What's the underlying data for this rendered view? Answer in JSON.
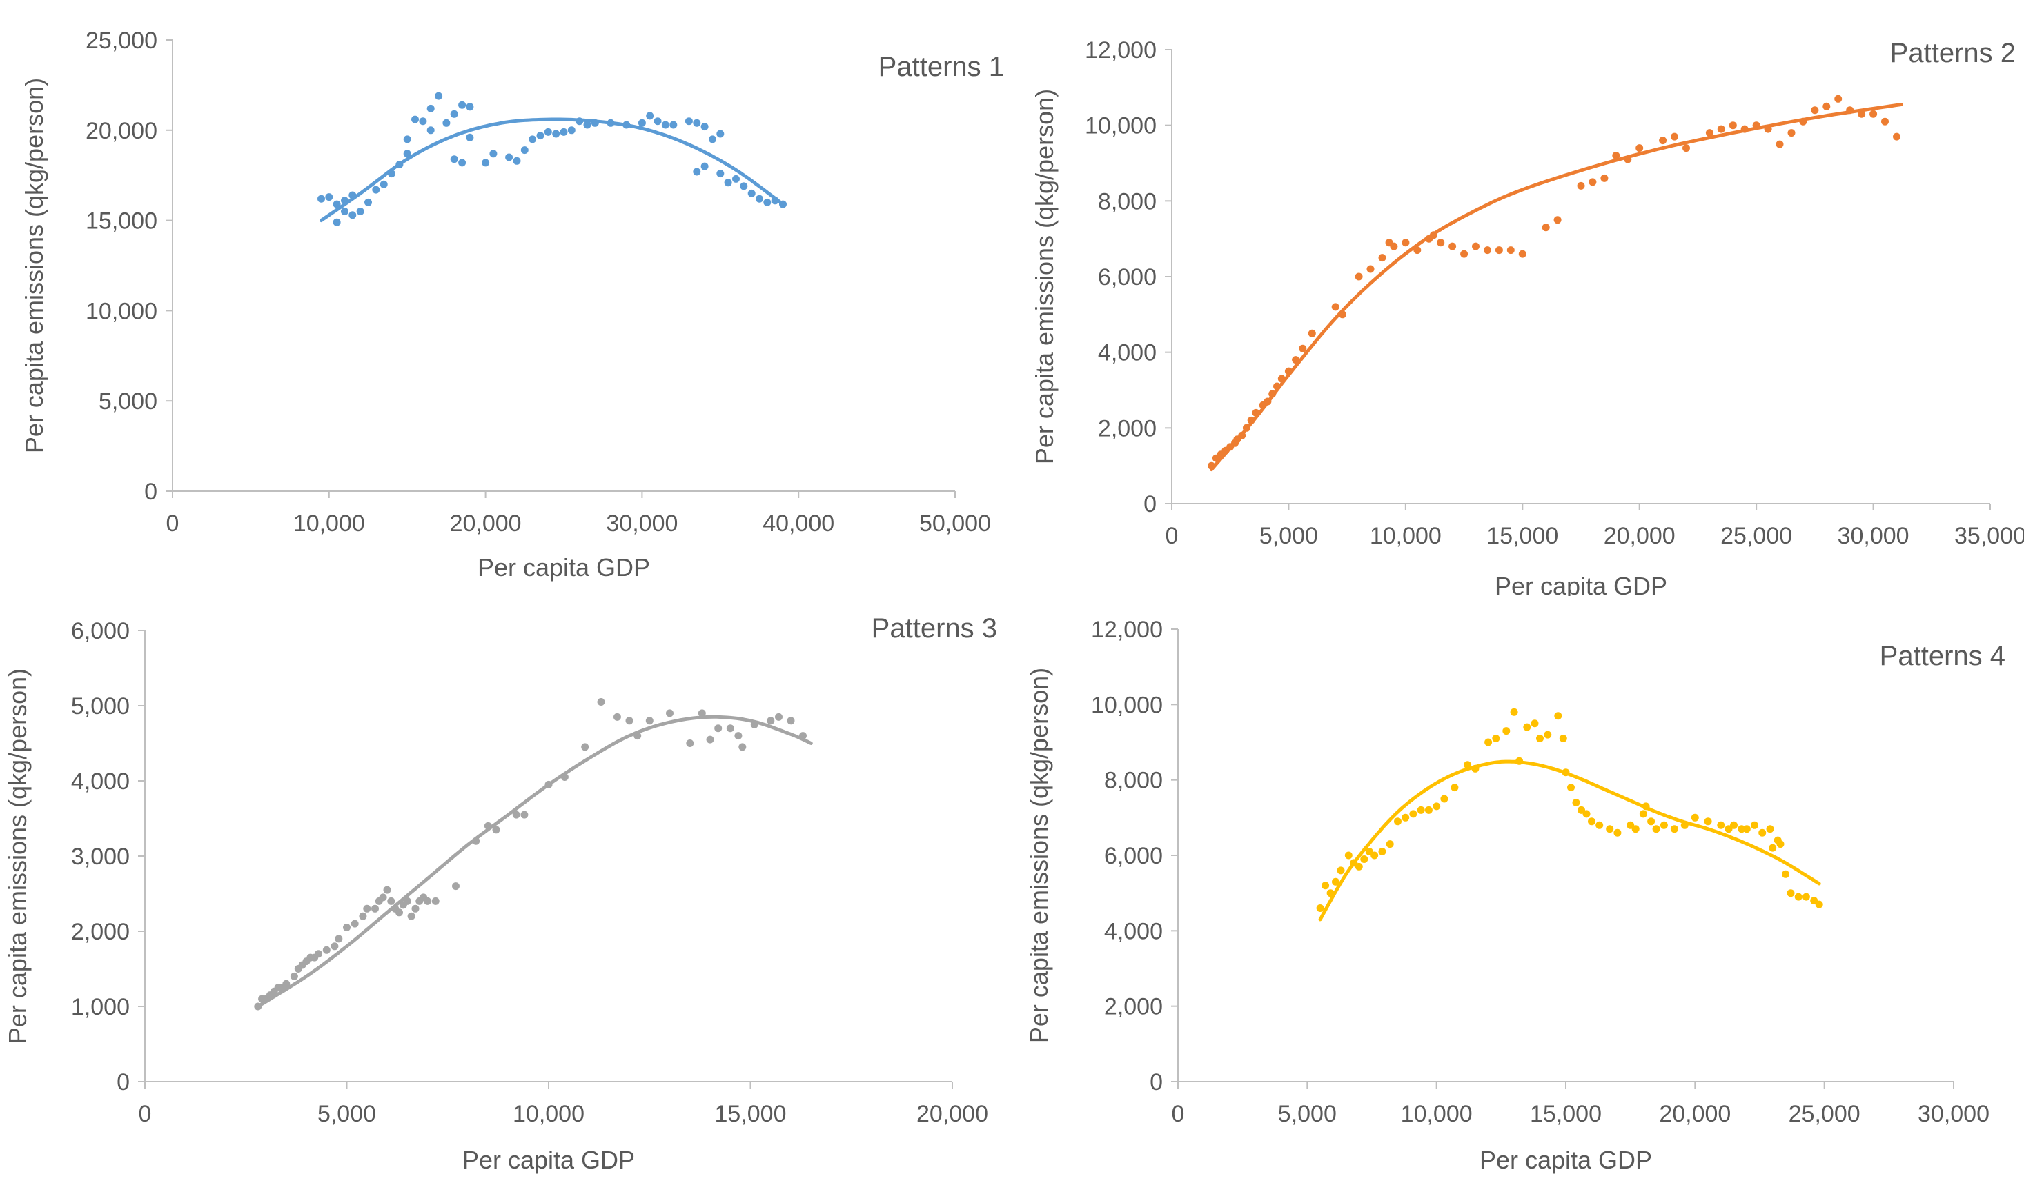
{
  "chart_data": [
    {
      "type": "scatter",
      "title": "Patterns 1",
      "xlabel": "Per capita GDP",
      "ylabel": "Per capita emissions (qkg/person)",
      "xlim": [
        0,
        50000
      ],
      "ylim": [
        0,
        25000
      ],
      "xticks": [
        "0",
        "10,000",
        "20,000",
        "30,000",
        "40,000",
        "50,000"
      ],
      "yticks": [
        "0",
        "5,000",
        "10,000",
        "15,000",
        "20,000",
        "25,000"
      ],
      "color": "#5B9BD5",
      "grid": false,
      "trend": {
        "type": "polynomial",
        "xrange": [
          9500,
          39000
        ],
        "points": [
          [
            9500,
            15000
          ],
          [
            12000,
            16500
          ],
          [
            15000,
            18400
          ],
          [
            18000,
            19700
          ],
          [
            21000,
            20400
          ],
          [
            24000,
            20600
          ],
          [
            27000,
            20500
          ],
          [
            30000,
            20100
          ],
          [
            33000,
            19200
          ],
          [
            36000,
            17800
          ],
          [
            39000,
            15900
          ]
        ]
      },
      "x": [
        9500,
        10000,
        10500,
        11000,
        11000,
        10500,
        11500,
        11500,
        12000,
        12500,
        13000,
        13500,
        14000,
        14500,
        15000,
        15000,
        15500,
        16000,
        16500,
        16500,
        17000,
        17500,
        18000,
        18000,
        18500,
        18500,
        19000,
        19000,
        20000,
        20500,
        21500,
        22000,
        22500,
        23000,
        23500,
        24000,
        24500,
        25000,
        25500,
        26000,
        26500,
        27000,
        28000,
        29000,
        30000,
        30500,
        31000,
        31500,
        32000,
        33000,
        33500,
        34000,
        34500,
        35000,
        33500,
        34000,
        35000,
        35500,
        36000,
        36500,
        37000,
        37500,
        38000,
        38500,
        39000
      ],
      "y": [
        16200,
        16300,
        15900,
        16100,
        15500,
        14900,
        15300,
        16400,
        15500,
        16000,
        16700,
        17000,
        17600,
        18100,
        18700,
        19500,
        20600,
        20500,
        21200,
        20000,
        21900,
        20400,
        20900,
        18400,
        21400,
        18200,
        19600,
        21300,
        18200,
        18700,
        18500,
        18300,
        18900,
        19500,
        19700,
        19900,
        19800,
        19900,
        20000,
        20500,
        20300,
        20400,
        20400,
        20300,
        20400,
        20800,
        20500,
        20300,
        20300,
        20500,
        20400,
        20200,
        19500,
        19800,
        17700,
        18000,
        17600,
        17100,
        17300,
        16900,
        16500,
        16200,
        16000,
        16100,
        15900
      ]
    },
    {
      "type": "scatter",
      "title": "Patterns 2",
      "xlabel": "Per capita GDP",
      "ylabel": "Per capita emissions (qkg/person)",
      "xlim": [
        0,
        35000
      ],
      "ylim": [
        0,
        12000
      ],
      "xticks": [
        "0",
        "5,000",
        "10,000",
        "15,000",
        "20,000",
        "25,000",
        "30,000",
        "35,000"
      ],
      "yticks": [
        "0",
        "2,000",
        "4,000",
        "6,000",
        "8,000",
        "10,000",
        "12,000"
      ],
      "color": "#ED7D31",
      "grid": false,
      "trend": {
        "type": "polynomial",
        "xrange": [
          1700,
          31200
        ],
        "points": [
          [
            1700,
            900
          ],
          [
            3500,
            2200
          ],
          [
            5000,
            3400
          ],
          [
            7000,
            4900
          ],
          [
            9000,
            6100
          ],
          [
            11000,
            7050
          ],
          [
            13000,
            7750
          ],
          [
            15000,
            8300
          ],
          [
            18000,
            8900
          ],
          [
            21000,
            9400
          ],
          [
            24000,
            9800
          ],
          [
            27000,
            10150
          ],
          [
            29000,
            10350
          ],
          [
            31200,
            10550
          ]
        ]
      },
      "x": [
        1700,
        1900,
        2100,
        2300,
        2500,
        2700,
        2800,
        3000,
        3200,
        3400,
        3600,
        3900,
        4100,
        4300,
        4500,
        4700,
        5000,
        5300,
        5600,
        6000,
        7000,
        7300,
        8000,
        8500,
        9000,
        9300,
        9500,
        10000,
        10500,
        11000,
        11200,
        11500,
        12000,
        12500,
        13000,
        13500,
        14000,
        14500,
        15000,
        16000,
        16500,
        17500,
        18000,
        18500,
        19000,
        19500,
        20000,
        21000,
        21500,
        22000,
        23000,
        23500,
        24000,
        24500,
        25000,
        25500,
        26000,
        26500,
        27000,
        27500,
        28000,
        28500,
        29000,
        29500,
        30000,
        30500,
        31000
      ],
      "y": [
        1000,
        1200,
        1300,
        1400,
        1500,
        1600,
        1700,
        1800,
        2000,
        2200,
        2400,
        2600,
        2700,
        2900,
        3100,
        3300,
        3500,
        3800,
        4100,
        4500,
        5200,
        5000,
        6000,
        6200,
        6500,
        6900,
        6800,
        6900,
        6700,
        7000,
        7100,
        6900,
        6800,
        6600,
        6800,
        6700,
        6700,
        6700,
        6600,
        7300,
        7500,
        8400,
        8500,
        8600,
        9200,
        9100,
        9400,
        9600,
        9700,
        9400,
        9800,
        9900,
        10000,
        9900,
        10000,
        9900,
        9500,
        9800,
        10100,
        10400,
        10500,
        10700,
        10400,
        10300,
        10300,
        10100,
        9700
      ]
    },
    {
      "type": "scatter",
      "title": "Patterns 3",
      "xlabel": "Per capita GDP",
      "ylabel": "Per capita emissions (qkg/person)",
      "xlim": [
        0,
        20000
      ],
      "ylim": [
        0,
        6000
      ],
      "xticks": [
        "0",
        "5,000",
        "10,000",
        "15,000",
        "20,000"
      ],
      "yticks": [
        "0",
        "1,000",
        "2,000",
        "3,000",
        "4,000",
        "5,000",
        "6,000"
      ],
      "color": "#A5A5A5",
      "grid": false,
      "trend": {
        "type": "polynomial",
        "xrange": [
          2800,
          16500
        ],
        "points": [
          [
            2800,
            1000
          ],
          [
            4000,
            1400
          ],
          [
            5000,
            1800
          ],
          [
            6000,
            2250
          ],
          [
            7000,
            2700
          ],
          [
            8000,
            3150
          ],
          [
            9000,
            3550
          ],
          [
            10000,
            3950
          ],
          [
            11000,
            4300
          ],
          [
            12000,
            4600
          ],
          [
            13000,
            4780
          ],
          [
            14000,
            4850
          ],
          [
            15000,
            4800
          ],
          [
            16000,
            4620
          ],
          [
            16500,
            4500
          ]
        ]
      },
      "x": [
        2800,
        2900,
        3000,
        3100,
        3200,
        3300,
        3400,
        3500,
        3700,
        3800,
        3900,
        4000,
        4100,
        4200,
        4300,
        4500,
        4700,
        4800,
        5000,
        5200,
        5400,
        5500,
        5700,
        5800,
        5900,
        6000,
        6100,
        6200,
        6300,
        6400,
        6500,
        6600,
        6700,
        6800,
        6900,
        7000,
        7200,
        7700,
        8200,
        8500,
        8700,
        9200,
        9400,
        10000,
        10400,
        10900,
        11300,
        11700,
        12000,
        12200,
        12500,
        13000,
        13500,
        13800,
        14000,
        14200,
        14500,
        14700,
        14800,
        15100,
        15500,
        15700,
        16000,
        16300
      ],
      "y": [
        1000,
        1100,
        1100,
        1150,
        1200,
        1250,
        1250,
        1300,
        1400,
        1500,
        1550,
        1600,
        1650,
        1650,
        1700,
        1750,
        1800,
        1900,
        2050,
        2100,
        2200,
        2300,
        2300,
        2400,
        2450,
        2550,
        2400,
        2300,
        2250,
        2350,
        2400,
        2200,
        2300,
        2400,
        2450,
        2400,
        2400,
        2600,
        3200,
        3400,
        3350,
        3550,
        3550,
        3950,
        4050,
        4450,
        5050,
        4850,
        4800,
        4600,
        4800,
        4900,
        4500,
        4900,
        4550,
        4700,
        4700,
        4600,
        4450,
        4750,
        4800,
        4850,
        4800,
        4600
      ]
    },
    {
      "type": "scatter",
      "title": "Patterns 4",
      "xlabel": "Per capita GDP",
      "ylabel": "Per capita emissions (qkg/person)",
      "xlim": [
        0,
        30000
      ],
      "ylim": [
        0,
        12000
      ],
      "xticks": [
        "0",
        "5,000",
        "10,000",
        "15,000",
        "20,000",
        "25,000",
        "30,000"
      ],
      "yticks": [
        "0",
        "2,000",
        "4,000",
        "6,000",
        "8,000",
        "10,000",
        "12,000"
      ],
      "color": "#FFC000",
      "grid": false,
      "trend": {
        "type": "polynomial",
        "xrange": [
          5500,
          24800
        ],
        "points": [
          [
            5500,
            4300
          ],
          [
            6500,
            5500
          ],
          [
            7500,
            6400
          ],
          [
            8500,
            7150
          ],
          [
            9500,
            7700
          ],
          [
            10500,
            8100
          ],
          [
            11500,
            8350
          ],
          [
            12500,
            8480
          ],
          [
            13500,
            8450
          ],
          [
            14500,
            8300
          ],
          [
            15500,
            8050
          ],
          [
            16500,
            7750
          ],
          [
            17500,
            7450
          ],
          [
            18500,
            7150
          ],
          [
            19500,
            6900
          ],
          [
            20500,
            6700
          ],
          [
            21500,
            6450
          ],
          [
            22500,
            6150
          ],
          [
            23500,
            5800
          ],
          [
            24800,
            5250
          ]
        ]
      },
      "x": [
        5500,
        5700,
        5900,
        6100,
        6300,
        6600,
        6800,
        7000,
        7200,
        7400,
        7600,
        7900,
        8200,
        8500,
        8800,
        9100,
        9400,
        9700,
        10000,
        10300,
        10700,
        11200,
        11500,
        12000,
        12300,
        12700,
        13000,
        13200,
        13500,
        13800,
        14000,
        14300,
        14700,
        14900,
        15000,
        15200,
        15400,
        15600,
        15800,
        16000,
        16300,
        16700,
        17000,
        17500,
        17700,
        18000,
        18100,
        18300,
        18500,
        18800,
        19200,
        19600,
        20000,
        20500,
        21000,
        21300,
        21500,
        21800,
        22000,
        22300,
        22600,
        22900,
        23000,
        23200,
        23300,
        23500,
        23700,
        24000,
        24300,
        24600,
        24800
      ],
      "y": [
        4600,
        5200,
        5000,
        5300,
        5600,
        6000,
        5800,
        5700,
        5900,
        6100,
        6000,
        6100,
        6300,
        6900,
        7000,
        7100,
        7200,
        7200,
        7300,
        7500,
        7800,
        8400,
        8300,
        9000,
        9100,
        9300,
        9800,
        8500,
        9400,
        9500,
        9100,
        9200,
        9700,
        9100,
        8200,
        7800,
        7400,
        7200,
        7100,
        6900,
        6800,
        6700,
        6600,
        6800,
        6700,
        7100,
        7300,
        6900,
        6700,
        6800,
        6700,
        6800,
        7000,
        6900,
        6800,
        6700,
        6800,
        6700,
        6700,
        6800,
        6600,
        6700,
        6200,
        6400,
        6300,
        5500,
        5000,
        4900,
        4900,
        4800,
        4700
      ]
    }
  ]
}
